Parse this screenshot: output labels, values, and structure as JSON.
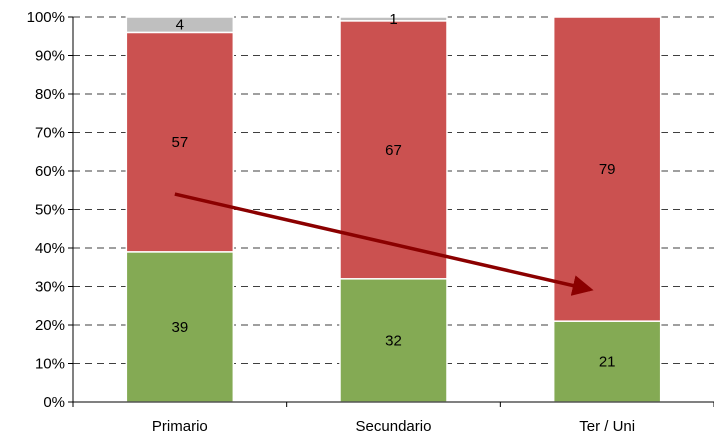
{
  "chart_data": {
    "type": "bar",
    "stacked": true,
    "normalized_percent": true,
    "categories": [
      "Primario",
      "Secundario",
      "Ter / Uni"
    ],
    "series": [
      {
        "values": [
          39,
          32,
          21
        ],
        "color": "#84AA54"
      },
      {
        "values": [
          57,
          67,
          79
        ],
        "color": "#CB5150"
      },
      {
        "values": [
          4,
          1,
          0
        ],
        "color": "#BFBFBF"
      }
    ],
    "data_labels": [
      [
        "39",
        "32",
        "21"
      ],
      [
        "57",
        "67",
        "79"
      ],
      [
        "4",
        "1",
        ""
      ]
    ],
    "ylim": [
      0,
      100
    ],
    "yticks": [
      "0%",
      "10%",
      "20%",
      "30%",
      "40%",
      "50%",
      "60%",
      "70%",
      "80%",
      "90%",
      "100%"
    ],
    "grid": true,
    "legend": "none",
    "title": "",
    "xlabel": "",
    "ylabel": "",
    "annotation": {
      "type": "trend-arrow",
      "color": "#8B0000",
      "from": {
        "category": "Primario",
        "y": 54
      },
      "to": {
        "category": "Ter / Uni",
        "y": 30
      }
    }
  }
}
